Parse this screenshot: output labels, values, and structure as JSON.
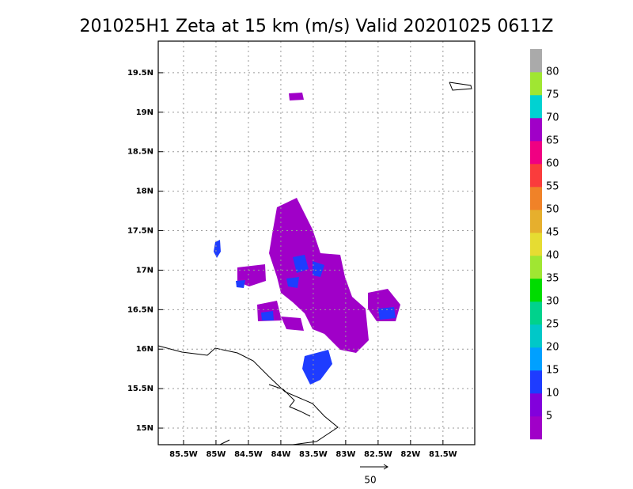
{
  "map": {
    "title": "201025H1  Zeta at 15 km (m/s) Valid 20201025 0611Z",
    "xlim": [
      -85.89,
      -81.01
    ],
    "ylim": [
      14.79,
      19.9
    ],
    "grid": true,
    "lon_ticks": [
      {
        "value": -85.5,
        "label": "85.5W"
      },
      {
        "value": -85,
        "label": "85W"
      },
      {
        "value": -84.5,
        "label": "84.5W"
      },
      {
        "value": -84,
        "label": "84W"
      },
      {
        "value": -83.5,
        "label": "83.5W"
      },
      {
        "value": -83,
        "label": "83W"
      },
      {
        "value": -82.5,
        "label": "82.5W"
      },
      {
        "value": -82,
        "label": "82W"
      },
      {
        "value": -81.5,
        "label": "81.5W"
      }
    ],
    "lat_ticks": [
      {
        "value": 15,
        "label": "15N"
      },
      {
        "value": 15.5,
        "label": "15.5N"
      },
      {
        "value": 16,
        "label": "16N"
      },
      {
        "value": 16.5,
        "label": "16.5N"
      },
      {
        "value": 17,
        "label": "17N"
      },
      {
        "value": 17.5,
        "label": "17.5N"
      },
      {
        "value": 18,
        "label": "18N"
      },
      {
        "value": 18.5,
        "label": "18.5N"
      },
      {
        "value": 19,
        "label": "19N"
      },
      {
        "value": 19.5,
        "label": "19.5N"
      }
    ]
  },
  "colorbar": {
    "levels": [
      5,
      10,
      15,
      20,
      25,
      30,
      35,
      40,
      45,
      50,
      55,
      60,
      65,
      70,
      75,
      80
    ],
    "colors": [
      "#a000c8",
      "#8200dc",
      "#1e3cff",
      "#00a0ff",
      "#00c8c8",
      "#00d28c",
      "#00dc00",
      "#a0e632",
      "#e6dc32",
      "#e6af2d",
      "#f08228",
      "#fa3c3c",
      "#f00082",
      "#a000c8",
      "#00d2d2",
      "#a0e632",
      "#aaaaaa"
    ]
  },
  "vector_scale": 50
}
